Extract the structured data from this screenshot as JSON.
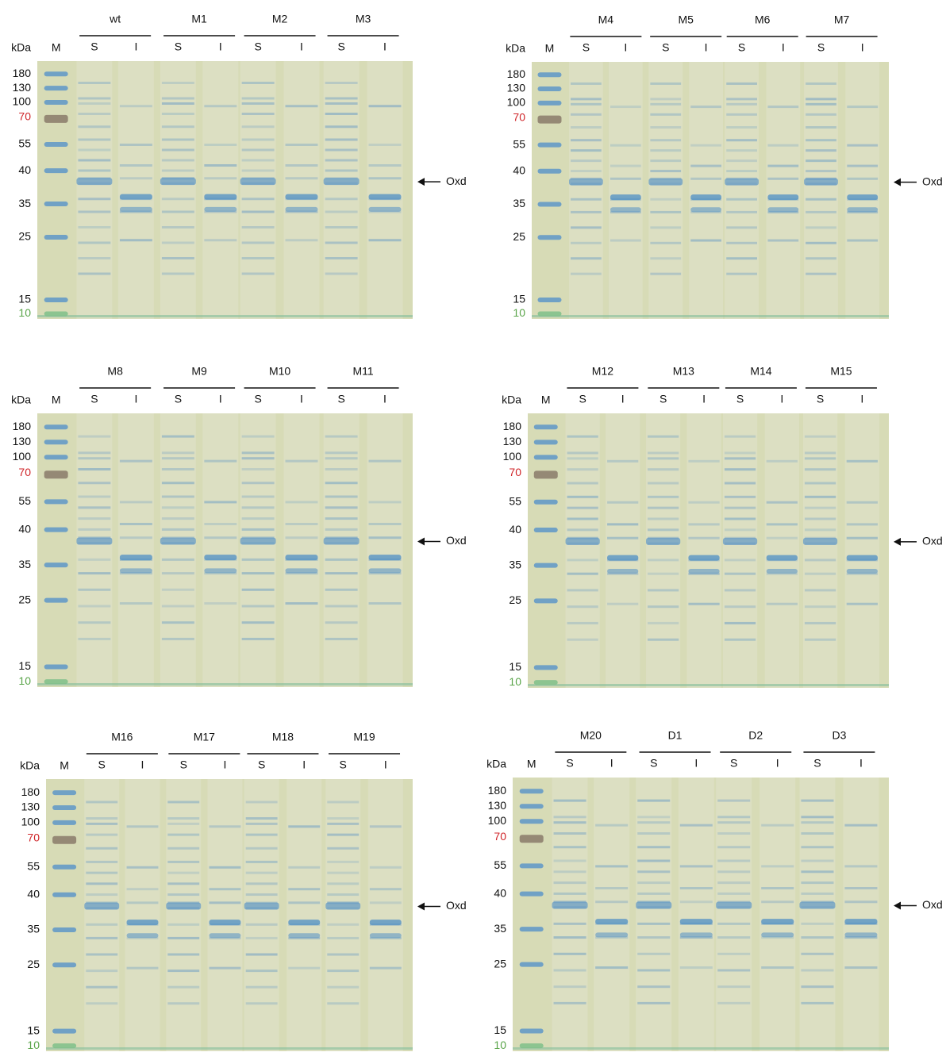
{
  "panels": [
    {
      "groups": [
        "wt",
        "M1",
        "M2",
        "M3"
      ],
      "unit_label": "kDa",
      "marker_lane": "M",
      "lanes": [
        "S",
        "I",
        "S",
        "I",
        "S",
        "I",
        "S",
        "I"
      ],
      "markers": [
        "180",
        "130",
        "100",
        "70",
        "55",
        "40",
        "35",
        "25",
        "15",
        "10"
      ],
      "arrow_label": "Oxd"
    },
    {
      "groups": [
        "M4",
        "M5",
        "M6",
        "M7"
      ],
      "unit_label": "kDa",
      "marker_lane": "M",
      "lanes": [
        "S",
        "I",
        "S",
        "I",
        "S",
        "I",
        "S",
        "I"
      ],
      "markers": [
        "180",
        "130",
        "100",
        "70",
        "55",
        "40",
        "35",
        "25",
        "15",
        "10"
      ],
      "arrow_label": "Oxd"
    },
    {
      "groups": [
        "M8",
        "M9",
        "M10",
        "M11"
      ],
      "unit_label": "kDa",
      "marker_lane": "M",
      "lanes": [
        "S",
        "I",
        "S",
        "I",
        "S",
        "I",
        "S",
        "I"
      ],
      "markers": [
        "180",
        "130",
        "100",
        "70",
        "55",
        "40",
        "35",
        "25",
        "15",
        "10"
      ],
      "arrow_label": "Oxd"
    },
    {
      "groups": [
        "M12",
        "M13",
        "M14",
        "M15"
      ],
      "unit_label": "kDa",
      "marker_lane": "M",
      "lanes": [
        "S",
        "I",
        "S",
        "I",
        "S",
        "I",
        "S",
        "I"
      ],
      "markers": [
        "180",
        "130",
        "100",
        "70",
        "55",
        "40",
        "35",
        "25",
        "15",
        "10"
      ],
      "arrow_label": "Oxd"
    },
    {
      "groups": [
        "M16",
        "M17",
        "M18",
        "M19"
      ],
      "unit_label": "kDa",
      "marker_lane": "M",
      "lanes": [
        "S",
        "I",
        "S",
        "I",
        "S",
        "I",
        "S",
        "I"
      ],
      "markers": [
        "180",
        "130",
        "100",
        "70",
        "55",
        "40",
        "35",
        "25",
        "15",
        "10"
      ],
      "arrow_label": "Oxd"
    },
    {
      "groups": [
        "M20",
        "D1",
        "D2",
        "D3"
      ],
      "unit_label": "kDa",
      "marker_lane": "M",
      "lanes": [
        "S",
        "I",
        "S",
        "I",
        "S",
        "I",
        "S",
        "I"
      ],
      "markers": [
        "180",
        "130",
        "100",
        "70",
        "55",
        "40",
        "35",
        "25",
        "15",
        "10"
      ],
      "arrow_label": "Oxd"
    }
  ]
}
